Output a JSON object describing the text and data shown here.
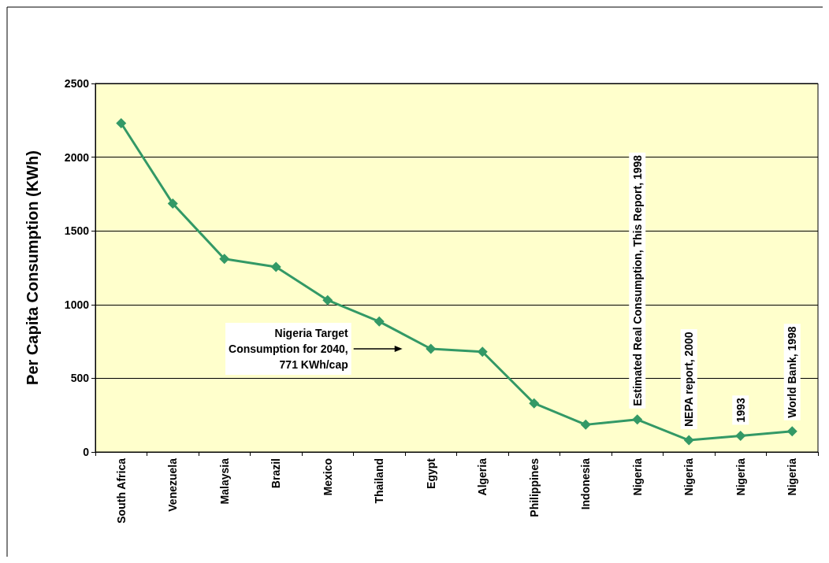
{
  "chart_data": {
    "type": "line",
    "ylabel": "Per Capita Consumption (KWh)",
    "categories": [
      "South Africa",
      "Venezuela",
      "Malaysia",
      "Brazil",
      "Mexico",
      "Thailand",
      "Egypt",
      "Algeria",
      "Philippines",
      "Indonesia",
      "Nigeria",
      "Nigeria",
      "Nigeria",
      "Nigeria"
    ],
    "series": [
      {
        "color": "#339966",
        "values": [
          2230,
          1685,
          1310,
          1255,
          1030,
          885,
          700,
          680,
          330,
          185,
          220,
          80,
          110,
          140
        ]
      }
    ],
    "ylim": [
      0,
      2500
    ],
    "yticks": [
      0,
      500,
      1000,
      1500,
      2000,
      2500
    ],
    "grid": "y",
    "marker": "diamond",
    "line_style": "solid",
    "annotations": [
      "Nigeria Target\nConsumption for 2040,\n771 KWh/cap",
      "Estimated Real Consumption, This Report, 1998",
      "NEPA report, 2000",
      "1993",
      "World Bank, 1998"
    ]
  }
}
